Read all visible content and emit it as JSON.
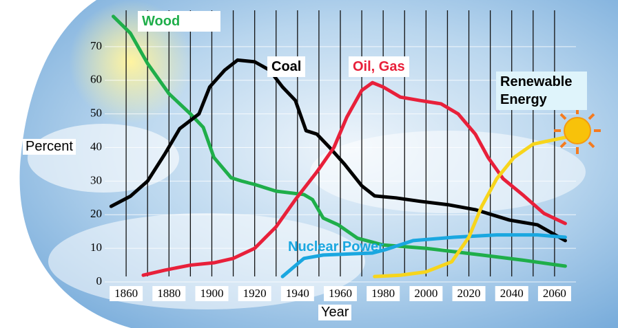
{
  "chart_data": {
    "type": "line",
    "xlabel": "Year",
    "ylabel": "Percent",
    "xlim": [
      1850,
      2070
    ],
    "ylim": [
      0,
      80
    ],
    "xticks": [
      1860,
      1880,
      1900,
      1920,
      1940,
      1960,
      1980,
      2000,
      2020,
      2040,
      2060
    ],
    "x_grid": [
      1860,
      1870,
      1880,
      1890,
      1900,
      1910,
      1920,
      1930,
      1940,
      1950,
      1960,
      1970,
      1980,
      1990,
      2000,
      2010,
      2020,
      2030,
      2040,
      2050,
      2060
    ],
    "yticks": [
      0,
      10,
      20,
      30,
      40,
      50,
      60,
      70
    ],
    "series": [
      {
        "name": "Wood",
        "color": "#1fae4a",
        "x": [
          1854,
          1862,
          1870,
          1880,
          1890,
          1896,
          1901,
          1909,
          1914,
          1920,
          1930,
          1943,
          1947,
          1952,
          1959,
          1968,
          1980,
          2000,
          2026,
          2045,
          2065
        ],
        "values": [
          79,
          74,
          65,
          56,
          50,
          46,
          37,
          31,
          30,
          29,
          27,
          26,
          24.5,
          19,
          17,
          13,
          11,
          10,
          8,
          6.5,
          4.7
        ]
      },
      {
        "name": "Coal",
        "color": "#000000",
        "x": [
          1853,
          1862,
          1870,
          1878,
          1885,
          1894,
          1899,
          1906,
          1912,
          1920,
          1927,
          1933,
          1939,
          1944,
          1949,
          1955,
          1962,
          1970,
          1976,
          1986,
          1997,
          2010,
          2023,
          2039,
          2052,
          2065
        ],
        "values": [
          22.5,
          25.5,
          30,
          38,
          45.6,
          50,
          58,
          63,
          66,
          65.5,
          63,
          58,
          54,
          45,
          44,
          40,
          35,
          28.6,
          25.6,
          25,
          24,
          23,
          21.5,
          18.4,
          17,
          12.3
        ]
      },
      {
        "name": "Oil, Gas",
        "color": "#e8203a",
        "x": [
          1868,
          1878,
          1890,
          1901,
          1910,
          1920,
          1930,
          1939,
          1949,
          1957,
          1963,
          1970,
          1975,
          1980,
          1988,
          1997,
          2007,
          2015,
          2023,
          2029,
          2036,
          2045,
          2055,
          2065
        ],
        "values": [
          2,
          3.5,
          5,
          5.7,
          7,
          10,
          16.4,
          24.5,
          32.7,
          40,
          49,
          57,
          59.3,
          58,
          55,
          54,
          53,
          50,
          44,
          37,
          30.7,
          26,
          20.4,
          17.4
        ]
      },
      {
        "name": "Nuclear Power",
        "color": "#1aa7e0",
        "x": [
          1933,
          1943,
          1952,
          1975,
          1981,
          1994,
          2013,
          2033,
          2052,
          2065
        ],
        "values": [
          1.6,
          7,
          8,
          8.6,
          9.6,
          12.3,
          13.3,
          14,
          14,
          13.3
        ]
      },
      {
        "name": "Renewable Energy",
        "color": "#f7d51c",
        "x": [
          1976,
          1988,
          2000,
          2012,
          2020,
          2026,
          2033,
          2041,
          2050,
          2065
        ],
        "values": [
          1.6,
          2,
          3,
          6,
          13.3,
          22.5,
          30.7,
          37,
          41,
          43
        ]
      }
    ]
  }
}
